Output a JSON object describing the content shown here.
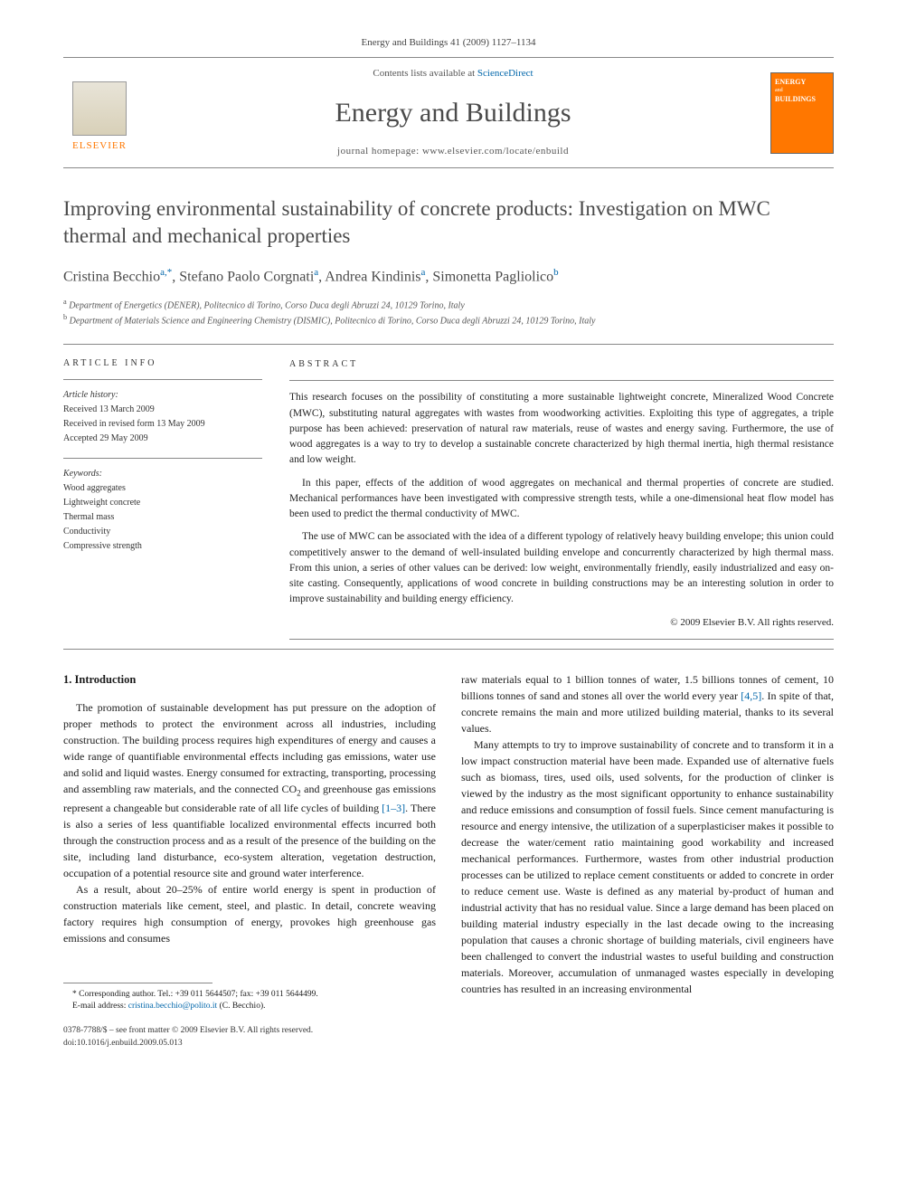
{
  "header": {
    "citation": "Energy and Buildings 41 (2009) 1127–1134"
  },
  "masthead": {
    "publisher": "ELSEVIER",
    "contents_prefix": "Contents lists available at ",
    "contents_link": "ScienceDirect",
    "journal_name": "Energy and Buildings",
    "homepage_prefix": "journal homepage: ",
    "homepage_url": "www.elsevier.com/locate/enbuild",
    "cover_label_line1": "ENERGY",
    "cover_label_line2": "BUILDINGS"
  },
  "article": {
    "title": "Improving environmental sustainability of concrete products: Investigation on MWC thermal and mechanical properties",
    "authors_html": "Cristina Becchio",
    "author_list": [
      {
        "name": "Cristina Becchio",
        "affil": "a,",
        "corr": "*"
      },
      {
        "name": "Stefano Paolo Corgnati",
        "affil": "a",
        "corr": ""
      },
      {
        "name": "Andrea Kindinis",
        "affil": "a",
        "corr": ""
      },
      {
        "name": "Simonetta Pagliolico",
        "affil": "b",
        "corr": ""
      }
    ],
    "affiliations": [
      {
        "key": "a",
        "text": "Department of Energetics (DENER), Politecnico di Torino, Corso Duca degli Abruzzi 24, 10129 Torino, Italy"
      },
      {
        "key": "b",
        "text": "Department of Materials Science and Engineering Chemistry (DISMIC), Politecnico di Torino, Corso Duca degli Abruzzi 24, 10129 Torino, Italy"
      }
    ]
  },
  "info": {
    "label": "ARTICLE INFO",
    "history_label": "Article history:",
    "received": "Received 13 March 2009",
    "revised": "Received in revised form 13 May 2009",
    "accepted": "Accepted 29 May 2009",
    "keywords_label": "Keywords:",
    "keywords": [
      "Wood aggregates",
      "Lightweight concrete",
      "Thermal mass",
      "Conductivity",
      "Compressive strength"
    ]
  },
  "abstract": {
    "label": "ABSTRACT",
    "p1": "This research focuses on the possibility of constituting a more sustainable lightweight concrete, Mineralized Wood Concrete (MWC), substituting natural aggregates with wastes from woodworking activities. Exploiting this type of aggregates, a triple purpose has been achieved: preservation of natural raw materials, reuse of wastes and energy saving. Furthermore, the use of wood aggregates is a way to try to develop a sustainable concrete characterized by high thermal inertia, high thermal resistance and low weight.",
    "p2": "In this paper, effects of the addition of wood aggregates on mechanical and thermal properties of concrete are studied. Mechanical performances have been investigated with compressive strength tests, while a one-dimensional heat flow model has been used to predict the thermal conductivity of MWC.",
    "p3": "The use of MWC can be associated with the idea of a different typology of relatively heavy building envelope; this union could competitively answer to the demand of well-insulated building envelope and concurrently characterized by high thermal mass. From this union, a series of other values can be derived: low weight, environmentally friendly, easily industrialized and easy on-site casting. Consequently, applications of wood concrete in building constructions may be an interesting solution in order to improve sustainability and building energy efficiency.",
    "copyright": "© 2009 Elsevier B.V. All rights reserved."
  },
  "body": {
    "heading1": "1. Introduction",
    "left_p1": "The promotion of sustainable development has put pressure on the adoption of proper methods to protect the environment across all industries, including construction. The building process requires high expenditures of energy and causes a wide range of quantifiable environmental effects including gas emissions, water use and solid and liquid wastes. Energy consumed for extracting, transporting, processing and assembling raw materials, and the connected CO",
    "left_p1b": " and greenhouse gas emissions represent a changeable but considerable rate of all life cycles of building ",
    "left_ref1": "[1–3]",
    "left_p1c": ". There is also a series of less quantifiable localized environmental effects incurred both through the construction process and as a result of the presence of the building on the site, including land disturbance, eco-system alteration, vegetation destruction, occupation of a potential resource site and ground water interference.",
    "left_p2": "As a result, about 20–25% of entire world energy is spent in production of construction materials like cement, steel, and plastic. In detail, concrete weaving factory requires high consumption of energy, provokes high greenhouse gas emissions and consumes",
    "right_p1a": "raw materials equal to 1 billion tonnes of water, 1.5 billions tonnes of cement, 10 billions tonnes of sand and stones all over the world every year ",
    "right_ref1": "[4,5]",
    "right_p1b": ". In spite of that, concrete remains the main and more utilized building material, thanks to its several values.",
    "right_p2": "Many attempts to try to improve sustainability of concrete and to transform it in a low impact construction material have been made. Expanded use of alternative fuels such as biomass, tires, used oils, used solvents, for the production of clinker is viewed by the industry as the most significant opportunity to enhance sustainability and reduce emissions and consumption of fossil fuels. Since cement manufacturing is resource and energy intensive, the utilization of a superplasticiser makes it possible to decrease the water/cement ratio maintaining good workability and increased mechanical performances. Furthermore, wastes from other industrial production processes can be utilized to replace cement constituents or added to concrete in order to reduce cement use. Waste is defined as any material by-product of human and industrial activity that has no residual value. Since a large demand has been placed on building material industry especially in the last decade owing to the increasing population that causes a chronic shortage of building materials, civil engineers have been challenged to convert the industrial wastes to useful building and construction materials. Moreover, accumulation of unmanaged wastes especially in developing countries has resulted in an increasing environmental"
  },
  "footnotes": {
    "corr": "* Corresponding author. Tel.: +39 011 5644507; fax: +39 011 5644499.",
    "email_label": "E-mail address: ",
    "email": "cristina.becchio@polito.it",
    "email_suffix": " (C. Becchio)."
  },
  "footer": {
    "issn_line": "0378-7788/$ – see front matter © 2009 Elsevier B.V. All rights reserved.",
    "doi": "doi:10.1016/j.enbuild.2009.05.013"
  },
  "colors": {
    "link": "#0066aa",
    "publisher": "#ff7700",
    "text": "#1a1a1a",
    "heading": "#4a4a4a",
    "rule": "#888888"
  }
}
